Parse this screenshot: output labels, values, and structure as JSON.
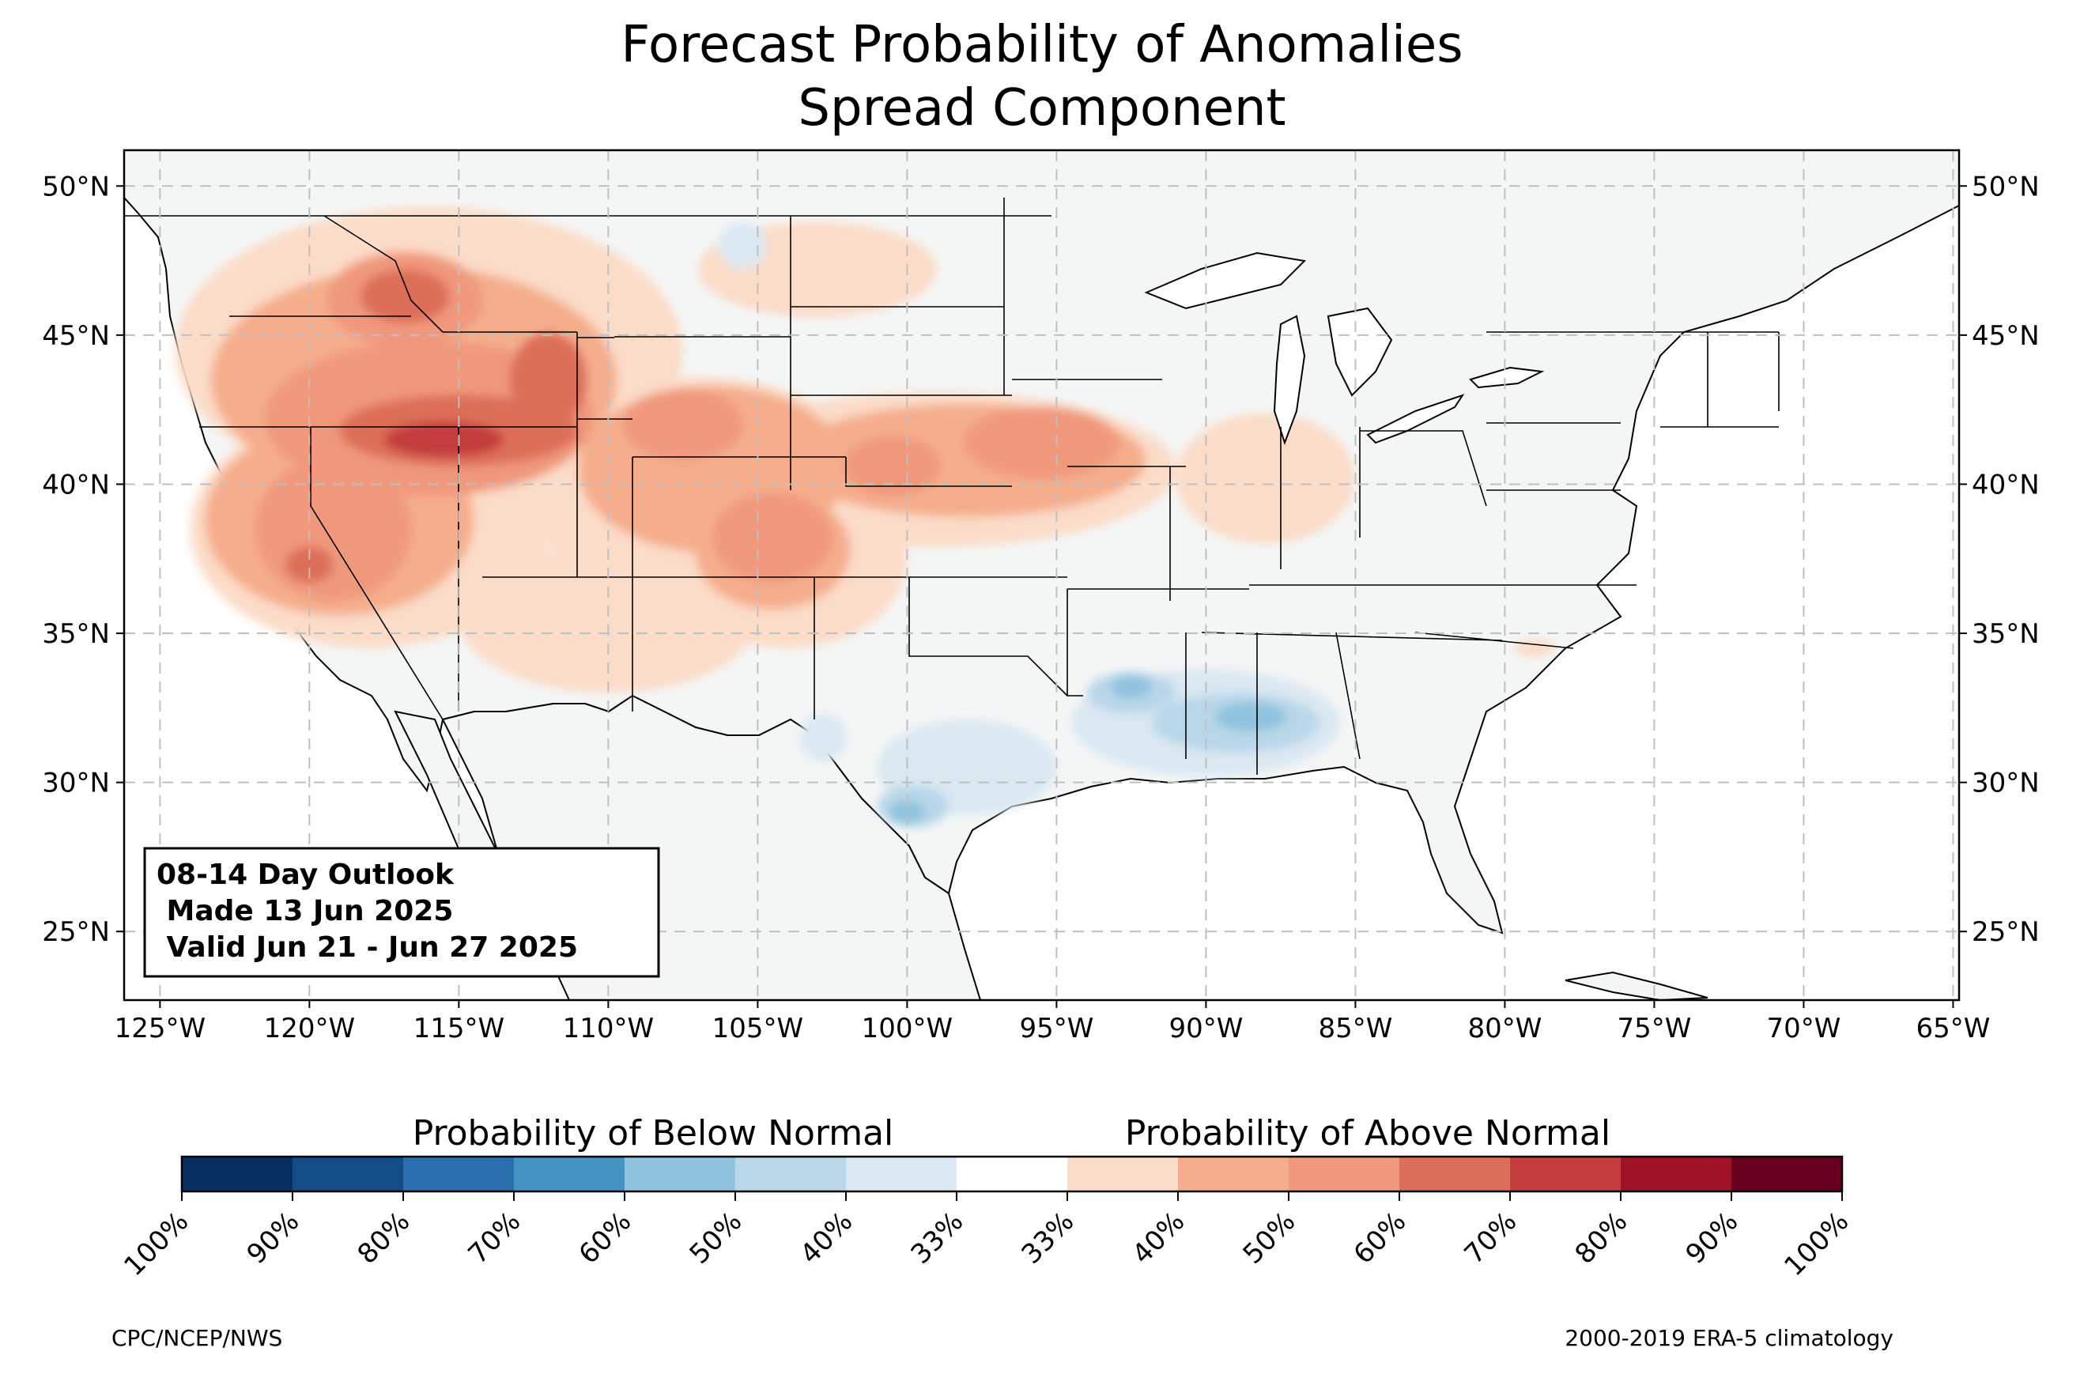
{
  "title": {
    "line1": "Forecast Probability of Anomalies",
    "line2": "Spread Component"
  },
  "map": {
    "lon_range": [
      -126.2,
      -64.8
    ],
    "lat_range": [
      22.7,
      51.2
    ],
    "lon_ticks": [
      {
        "value": -125,
        "label": "125°W"
      },
      {
        "value": -120,
        "label": "120°W"
      },
      {
        "value": -115,
        "label": "115°W"
      },
      {
        "value": -110,
        "label": "110°W"
      },
      {
        "value": -105,
        "label": "105°W"
      },
      {
        "value": -100,
        "label": "100°W"
      },
      {
        "value": -95,
        "label": "95°W"
      },
      {
        "value": -90,
        "label": "90°W"
      },
      {
        "value": -85,
        "label": "85°W"
      },
      {
        "value": -80,
        "label": "80°W"
      },
      {
        "value": -75,
        "label": "75°W"
      },
      {
        "value": -70,
        "label": "70°W"
      },
      {
        "value": -65,
        "label": "65°W"
      }
    ],
    "lat_ticks": [
      {
        "value": 50,
        "label": "50°N"
      },
      {
        "value": 45,
        "label": "45°N"
      },
      {
        "value": 40,
        "label": "40°N"
      },
      {
        "value": 35,
        "label": "35°N"
      },
      {
        "value": 30,
        "label": "30°N"
      },
      {
        "value": 25,
        "label": "25°N"
      }
    ],
    "land_color": "#f4f6f6",
    "grid": "dashed"
  },
  "outlook": {
    "line1": "08-14 Day Outlook",
    "line2": " Made 13 Jun 2025",
    "line3": " Valid Jun 21 - Jun 27 2025"
  },
  "colorbar": {
    "below_label": "Probability of Below Normal",
    "above_label": "Probability of Above Normal",
    "colors": [
      "#053061",
      "#134c87",
      "#2c6fb0",
      "#4393c3",
      "#8fc3de",
      "#b9d7e9",
      "#dae8f2",
      "#ffffff",
      "#fbdcc8",
      "#f5ad8c",
      "#f0987b",
      "#dd6e59",
      "#c33d3e",
      "#a11428",
      "#67001f"
    ],
    "tick_labels": [
      "100%",
      "90%",
      "80%",
      "70%",
      "60%",
      "50%",
      "40%",
      "33%",
      "33%",
      "40%",
      "50%",
      "60%",
      "70%",
      "80%",
      "90%",
      "100%"
    ]
  },
  "credits": {
    "left": "CPC/NCEP/NWS",
    "right": "2000-2019 ERA-5 climatology"
  },
  "anomaly_blobs": [
    {
      "cat": "above",
      "level": "40",
      "lon": -116,
      "lat": 44.5,
      "rx": 8.5,
      "ry": 4.8
    },
    {
      "cat": "above",
      "level": "40",
      "lon": -118,
      "lat": 38.5,
      "rx": 6,
      "ry": 4
    },
    {
      "cat": "above",
      "level": "40",
      "lon": -107,
      "lat": 40,
      "rx": 6,
      "ry": 3.6
    },
    {
      "cat": "above",
      "level": "40",
      "lon": -99,
      "lat": 40.5,
      "rx": 8,
      "ry": 2.6
    },
    {
      "cat": "above",
      "level": "40",
      "lon": -104,
      "lat": 37.5,
      "rx": 4,
      "ry": 3
    },
    {
      "cat": "above",
      "level": "40",
      "lon": -103,
      "lat": 47.2,
      "rx": 4,
      "ry": 1.6
    },
    {
      "cat": "above",
      "level": "40",
      "lon": -110,
      "lat": 35.5,
      "rx": 5,
      "ry": 2.5
    },
    {
      "cat": "above",
      "level": "40",
      "lon": -88,
      "lat": 40.2,
      "rx": 3,
      "ry": 2.2
    },
    {
      "cat": "above",
      "level": "50",
      "lon": -116.5,
      "lat": 43.5,
      "rx": 6.8,
      "ry": 3.8
    },
    {
      "cat": "above",
      "level": "50",
      "lon": -119,
      "lat": 38.8,
      "rx": 4.5,
      "ry": 3.2
    },
    {
      "cat": "above",
      "level": "50",
      "lon": -106.5,
      "lat": 40.5,
      "rx": 4.5,
      "ry": 2.8
    },
    {
      "cat": "above",
      "level": "50",
      "lon": -98,
      "lat": 40.8,
      "rx": 6,
      "ry": 1.9
    },
    {
      "cat": "above",
      "level": "50",
      "lon": -104.5,
      "lat": 37.8,
      "rx": 2.6,
      "ry": 2
    },
    {
      "cat": "above",
      "level": "60",
      "lon": -116,
      "lat": 42.2,
      "rx": 5.5,
      "ry": 2.6
    },
    {
      "cat": "above",
      "level": "60",
      "lon": -116.8,
      "lat": 46.2,
      "rx": 2.6,
      "ry": 1.6
    },
    {
      "cat": "above",
      "level": "60",
      "lon": -119.2,
      "lat": 38.5,
      "rx": 2.6,
      "ry": 2.4
    },
    {
      "cat": "above",
      "level": "60",
      "lon": -104.5,
      "lat": 38.2,
      "rx": 2,
      "ry": 1.5
    },
    {
      "cat": "above",
      "level": "60",
      "lon": -95.5,
      "lat": 41.4,
      "rx": 2.6,
      "ry": 1.2
    },
    {
      "cat": "above",
      "level": "60",
      "lon": -100.5,
      "lat": 40.6,
      "rx": 1.6,
      "ry": 1
    },
    {
      "cat": "above",
      "level": "60",
      "lon": -107.5,
      "lat": 42,
      "rx": 2,
      "ry": 1.2
    },
    {
      "cat": "above",
      "level": "70",
      "lon": -115,
      "lat": 41.8,
      "rx": 4,
      "ry": 1.2
    },
    {
      "cat": "above",
      "level": "70",
      "lon": -116.8,
      "lat": 46.3,
      "rx": 1.5,
      "ry": 0.9
    },
    {
      "cat": "above",
      "level": "70",
      "lon": -112,
      "lat": 43.5,
      "rx": 1.3,
      "ry": 1.6
    },
    {
      "cat": "above",
      "level": "70",
      "lon": -120,
      "lat": 37.3,
      "rx": 0.8,
      "ry": 0.6
    },
    {
      "cat": "above",
      "level": "80",
      "lon": -115.5,
      "lat": 41.5,
      "rx": 2,
      "ry": 0.6
    },
    {
      "cat": "above",
      "level": "40",
      "lon": -79,
      "lat": 34.5,
      "rx": 0.7,
      "ry": 0.3
    },
    {
      "cat": "below",
      "level": "40",
      "lon": -90,
      "lat": 32,
      "rx": 4.5,
      "ry": 1.8
    },
    {
      "cat": "below",
      "level": "40",
      "lon": -98,
      "lat": 30.5,
      "rx": 3,
      "ry": 1.6
    },
    {
      "cat": "below",
      "level": "40",
      "lon": -102.8,
      "lat": 31.5,
      "rx": 0.8,
      "ry": 0.8
    },
    {
      "cat": "below",
      "level": "40",
      "lon": -105.5,
      "lat": 48,
      "rx": 0.8,
      "ry": 0.8
    },
    {
      "cat": "below",
      "level": "50",
      "lon": -89,
      "lat": 32,
      "rx": 2.8,
      "ry": 1
    },
    {
      "cat": "below",
      "level": "50",
      "lon": -92.5,
      "lat": 33,
      "rx": 1.5,
      "ry": 0.7
    },
    {
      "cat": "below",
      "level": "50",
      "lon": -99.8,
      "lat": 29.2,
      "rx": 1.2,
      "ry": 0.7
    },
    {
      "cat": "below",
      "level": "60",
      "lon": -88.5,
      "lat": 32.2,
      "rx": 1.2,
      "ry": 0.5
    },
    {
      "cat": "below",
      "level": "60",
      "lon": -92.5,
      "lat": 33.2,
      "rx": 0.7,
      "ry": 0.4
    },
    {
      "cat": "below",
      "level": "60",
      "lon": -100,
      "lat": 29,
      "rx": 0.6,
      "ry": 0.4
    }
  ],
  "level_colors": {
    "above": {
      "40": "#fbdcc8",
      "50": "#f5ad8c",
      "60": "#f0987b",
      "70": "#dd6e59",
      "80": "#c33d3e"
    },
    "below": {
      "40": "#dae8f2",
      "50": "#b9d7e9",
      "60": "#8fc3de"
    }
  }
}
